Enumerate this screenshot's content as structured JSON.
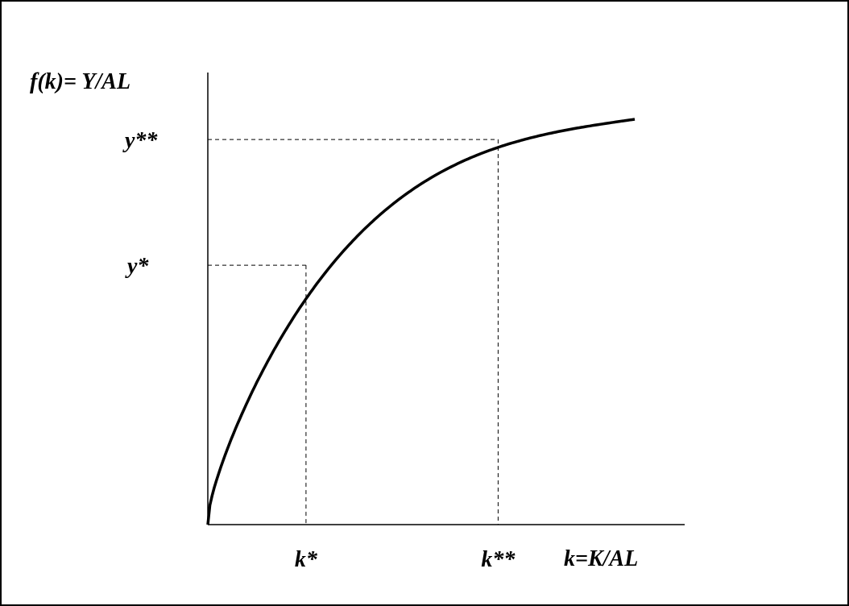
{
  "chart_data": {
    "type": "line",
    "ylabel": "f(k)= Y/AL",
    "xlabel": "k=K/AL",
    "series": [
      {
        "x": [
          0,
          0.05,
          0.1,
          0.2,
          0.3,
          0.4,
          0.5,
          0.6,
          0.7,
          0.8,
          0.9,
          1.0
        ],
        "values": [
          0,
          0.28,
          0.41,
          0.6,
          0.72,
          0.81,
          0.88,
          0.93,
          0.96,
          0.98,
          0.99,
          1.0
        ]
      }
    ],
    "markers": [
      {
        "x_label": "k*",
        "y_label": "y*",
        "x": 0.23,
        "y": 0.64
      },
      {
        "x_label": "k**",
        "y_label": "y**",
        "x": 0.68,
        "y": 0.95
      }
    ],
    "grid": false,
    "legend": "none"
  },
  "colors": {
    "line": "#000000",
    "guide": "#000000",
    "background": "#ffffff"
  }
}
